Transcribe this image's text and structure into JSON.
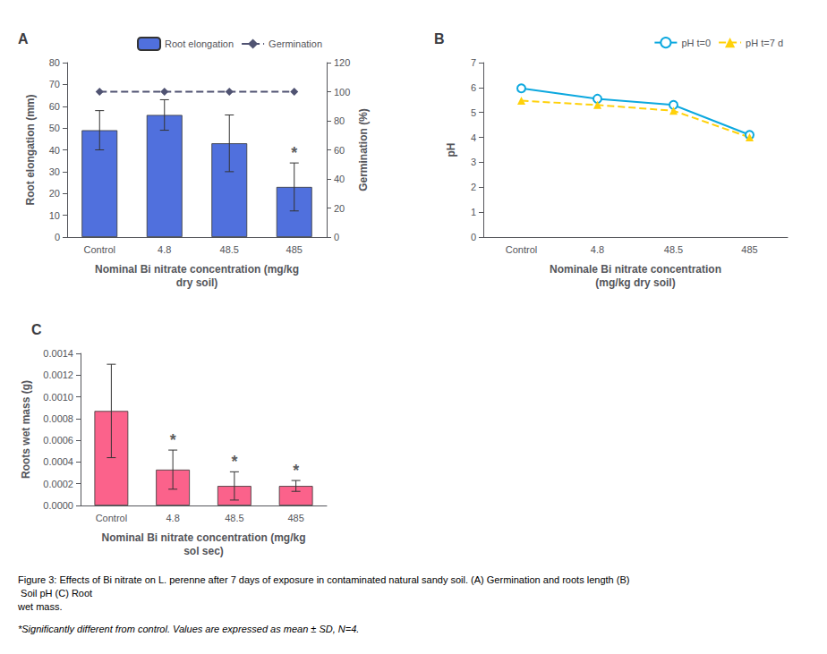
{
  "chart_data": [
    {
      "type": "bar",
      "title": "A",
      "categories": [
        "Control",
        "4.8",
        "48.5",
        "485"
      ],
      "xlabel": "Nominal Bi nitrate concentration (mg/kg\ndry soil)",
      "ylabel": "Root elongation (mm)",
      "y2label": "Germination (%)",
      "ylim": [
        0,
        80
      ],
      "yticks": [
        0,
        10,
        20,
        30,
        40,
        50,
        60,
        70,
        80
      ],
      "y2lim": [
        0,
        120
      ],
      "y2ticks": [
        0,
        20,
        40,
        60,
        80,
        100,
        120
      ],
      "series": [
        {
          "name": "Root elongation",
          "type": "bar",
          "values": [
            49,
            56,
            43,
            23
          ],
          "errors": [
            9,
            7,
            13,
            11
          ]
        },
        {
          "name": "Germination",
          "type": "line",
          "axis": "y2",
          "marker": "diamond",
          "line_style": "dashed",
          "values": [
            100,
            100,
            100,
            100
          ]
        }
      ],
      "annotations": [
        {
          "x": "485",
          "text": "*",
          "series": "Root elongation"
        }
      ],
      "legend": "upper right",
      "grid": false
    },
    {
      "type": "line",
      "title": "B",
      "categories": [
        "Control",
        "4.8",
        "48.5",
        "485"
      ],
      "xlabel": "Nominale Bi nitrate concentration\n(mg/kg dry soil)",
      "ylabel": "pH",
      "ylim": [
        0,
        7
      ],
      "yticks": [
        0,
        1,
        2,
        3,
        4,
        5,
        6,
        7
      ],
      "series": [
        {
          "name": "pH t=0",
          "marker": "circle",
          "line_style": "solid",
          "values": [
            5.97,
            5.55,
            5.3,
            4.1
          ]
        },
        {
          "name": "pH t=7 d",
          "marker": "triangle",
          "line_style": "dashed",
          "values": [
            5.47,
            5.3,
            5.07,
            4.0
          ]
        }
      ],
      "legend": "upper right",
      "grid": false
    },
    {
      "type": "bar",
      "title": "C",
      "categories": [
        "Control",
        "4.8",
        "48.5",
        "485"
      ],
      "xlabel": "Nominal Bi nitrate concentration (mg/kg\nsol sec)",
      "ylabel": "Roots wet mass (g)",
      "ylim": [
        0,
        0.0014
      ],
      "yticks": [
        {
          "value": 0,
          "label": "0.0000"
        },
        {
          "value": 0.0002,
          "label": "0.0002"
        },
        {
          "value": 0.0004,
          "label": "0.0004"
        },
        {
          "value": 0.0006,
          "label": "0.0006"
        },
        {
          "value": 0.0008,
          "label": "0.0008"
        },
        {
          "value": 0.001,
          "label": "0.0010"
        },
        {
          "value": 0.0012,
          "label": "0.0012"
        },
        {
          "value": 0.0014,
          "label": "0.0014"
        }
      ],
      "values": [
        0.00087,
        0.00033,
        0.00018,
        0.00018
      ],
      "errors": [
        0.00043,
        0.00018,
        0.00013,
        5e-05
      ],
      "annotations": [
        {
          "x": "4.8",
          "text": "*"
        },
        {
          "x": "48.5",
          "text": "*"
        },
        {
          "x": "485",
          "text": "*"
        }
      ],
      "grid": false
    }
  ],
  "annotations": [
    "Figure 3: Effects of Bi nitrate on L. perenne after 7 days of exposure in contaminated natural sandy soil. (A) Germination and roots length (B) Soil pH (C) Root\nwet mass.",
    "*Significantly different from control. Values are expressed as mean ± SD, N=4."
  ]
}
